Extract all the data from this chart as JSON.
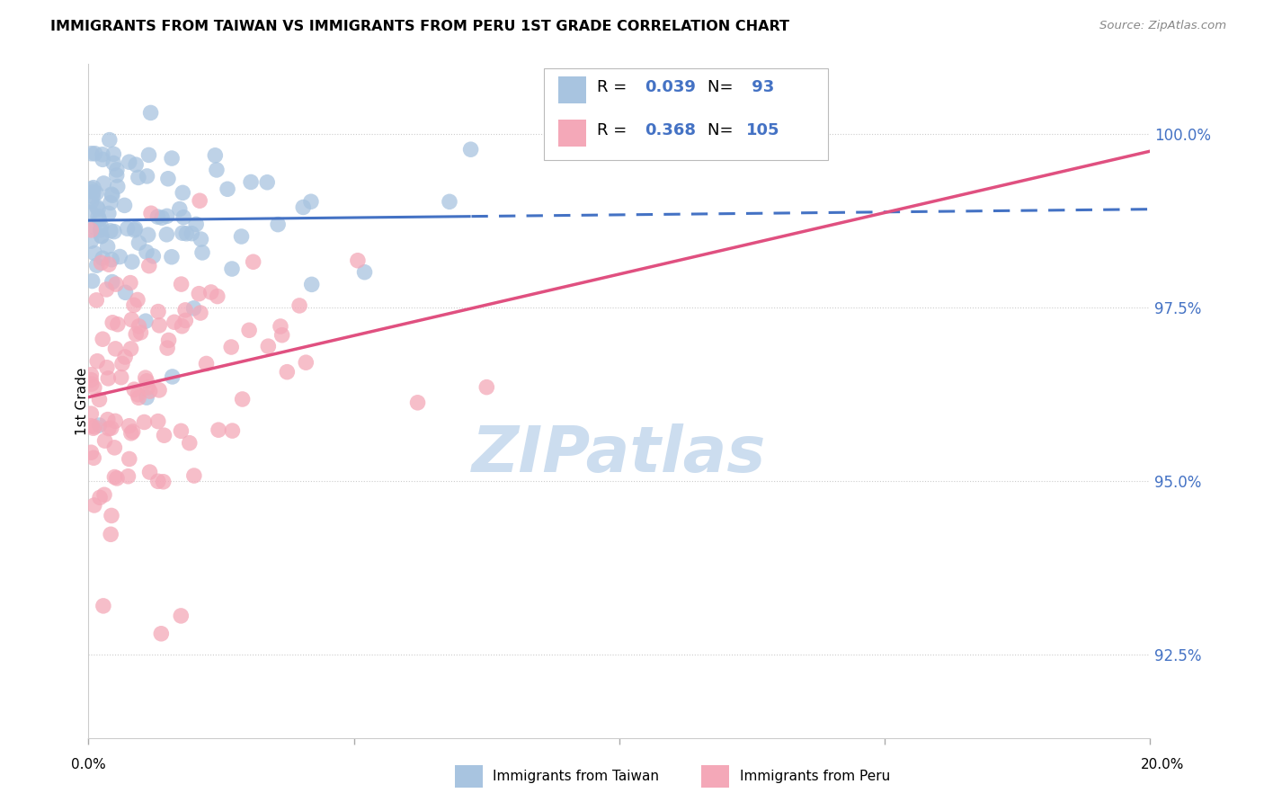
{
  "title": "IMMIGRANTS FROM TAIWAN VS IMMIGRANTS FROM PERU 1ST GRADE CORRELATION CHART",
  "source": "Source: ZipAtlas.com",
  "ylabel": "1st Grade",
  "y_ticks": [
    92.5,
    95.0,
    97.5,
    100.0
  ],
  "y_tick_labels": [
    "92.5%",
    "95.0%",
    "97.5%",
    "100.0%"
  ],
  "x_range": [
    0.0,
    20.0
  ],
  "y_range": [
    91.3,
    101.0
  ],
  "taiwan_R": 0.039,
  "taiwan_N": 93,
  "peru_R": 0.368,
  "peru_N": 105,
  "taiwan_color": "#a8c4e0",
  "peru_color": "#f4a8b8",
  "taiwan_line_color": "#4472c4",
  "peru_line_color": "#e05080",
  "legend_taiwan": "Immigrants from Taiwan",
  "legend_peru": "Immigrants from Peru",
  "watermark_color": "#ccddef",
  "grid_color": "#cccccc",
  "spine_color": "#cccccc"
}
